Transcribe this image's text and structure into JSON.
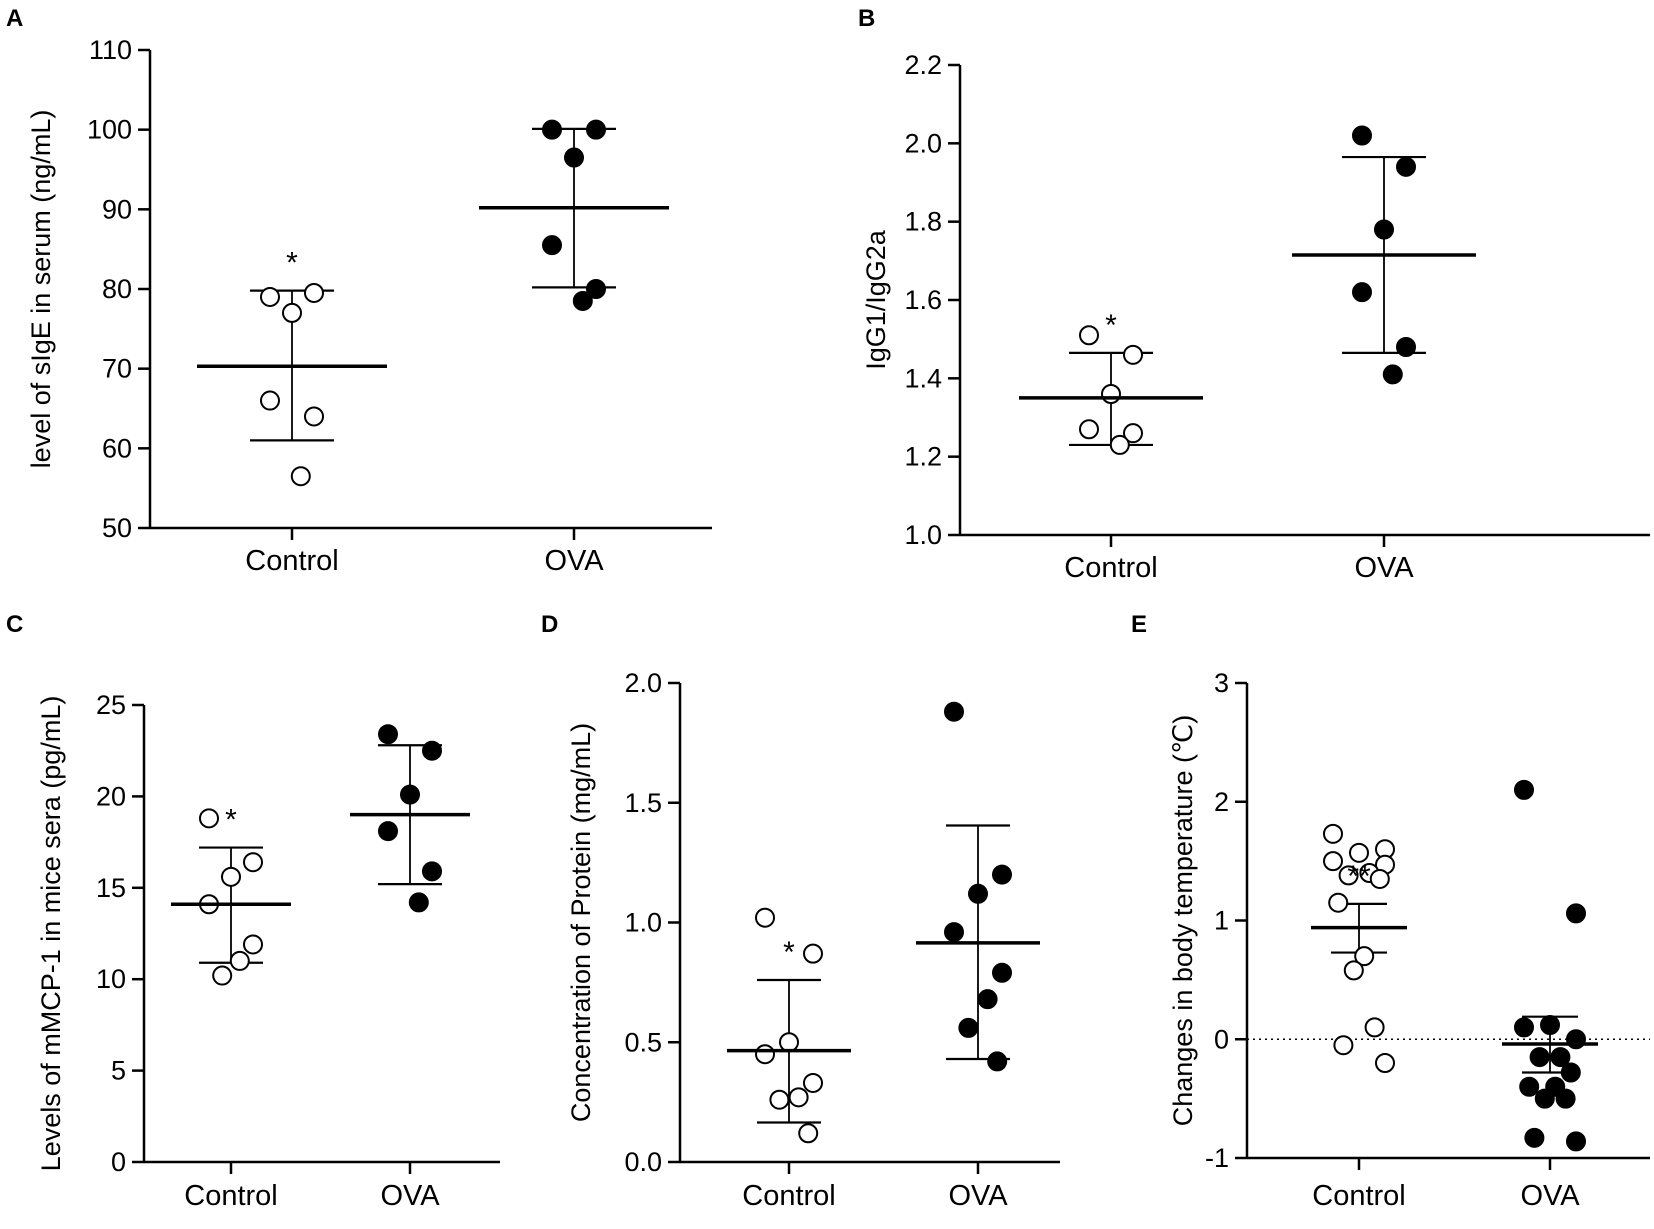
{
  "colors": {
    "ink": "#000000",
    "background": "#ffffff"
  },
  "chart_data": [
    {
      "panel": "A",
      "type": "scatter",
      "categories": [
        "Control",
        "OVA"
      ],
      "ylabel": "level of sIgE in serum (ng/mL)",
      "ylim": [
        50,
        110
      ],
      "yticks": [
        50,
        60,
        70,
        80,
        90,
        100,
        110
      ],
      "tick_decimals": 0,
      "series": [
        {
          "name": "Control",
          "marker": "open",
          "values": [
            79,
            79.5,
            77,
            66,
            64,
            56.5
          ],
          "mean": 70.3,
          "err_low": 61,
          "err_high": 79.8,
          "annotation": "*"
        },
        {
          "name": "OVA",
          "marker": "filled",
          "values": [
            100,
            100,
            96.5,
            85.5,
            80,
            78.5
          ],
          "mean": 90.2,
          "err_low": 80.2,
          "err_high": 100.1,
          "annotation": ""
        }
      ]
    },
    {
      "panel": "B",
      "type": "scatter",
      "categories": [
        "Control",
        "OVA"
      ],
      "ylabel": "IgG1/IgG2a",
      "ylim": [
        1.0,
        2.2
      ],
      "yticks": [
        1.0,
        1.2,
        1.4,
        1.6,
        1.8,
        2.0,
        2.2
      ],
      "tick_decimals": 1,
      "series": [
        {
          "name": "Control",
          "marker": "open",
          "values": [
            1.51,
            1.46,
            1.36,
            1.27,
            1.26,
            1.23
          ],
          "mean": 1.35,
          "err_low": 1.23,
          "err_high": 1.465,
          "annotation": "*"
        },
        {
          "name": "OVA",
          "marker": "filled",
          "values": [
            2.02,
            1.94,
            1.78,
            1.62,
            1.48,
            1.41
          ],
          "mean": 1.715,
          "err_low": 1.465,
          "err_high": 1.965,
          "annotation": ""
        }
      ]
    },
    {
      "panel": "C",
      "type": "scatter",
      "categories": [
        "Control",
        "OVA"
      ],
      "ylabel": "Levels of mMCP-1 in mice sera (pg/mL)",
      "ylim": [
        0,
        25
      ],
      "yticks": [
        0,
        5,
        10,
        15,
        20,
        25
      ],
      "tick_decimals": 0,
      "series": [
        {
          "name": "Control",
          "marker": "open",
          "values": [
            18.8,
            16.4,
            15.6,
            14.1,
            11.9,
            11.0,
            10.2
          ],
          "mean": 14.1,
          "err_low": 10.9,
          "err_high": 17.2,
          "annotation": "*"
        },
        {
          "name": "OVA",
          "marker": "filled",
          "values": [
            23.4,
            22.5,
            20.1,
            18.1,
            15.9,
            14.2
          ],
          "mean": 19.0,
          "err_low": 15.2,
          "err_high": 22.8,
          "annotation": ""
        }
      ]
    },
    {
      "panel": "D",
      "type": "scatter",
      "categories": [
        "Control",
        "OVA"
      ],
      "ylabel": "Concentration  of Protein (mg/mL)",
      "ylim": [
        0.0,
        2.0
      ],
      "yticks": [
        0.0,
        0.5,
        1.0,
        1.5,
        2.0
      ],
      "tick_decimals": 1,
      "series": [
        {
          "name": "Control",
          "marker": "open",
          "values": [
            1.02,
            0.87,
            0.5,
            0.45,
            0.33,
            0.27,
            0.26,
            0.12
          ],
          "mean": 0.465,
          "err_low": 0.165,
          "err_high": 0.76,
          "annotation": "*"
        },
        {
          "name": "OVA",
          "marker": "filled",
          "values": [
            1.88,
            1.2,
            1.12,
            0.96,
            0.79,
            0.68,
            0.56,
            0.42
          ],
          "mean": 0.915,
          "err_low": 0.43,
          "err_high": 1.405,
          "annotation": ""
        }
      ]
    },
    {
      "panel": "E",
      "type": "scatter",
      "categories": [
        "Control",
        "OVA"
      ],
      "ylabel": "Changes in body temperature (℃)",
      "ylim": [
        -1,
        3
      ],
      "yticks": [
        -1,
        0,
        1,
        2,
        3
      ],
      "tick_decimals": 0,
      "reference_line": 0,
      "series": [
        {
          "name": "Control",
          "marker": "open",
          "values": [
            1.73,
            1.6,
            1.57,
            1.5,
            1.47,
            1.4,
            1.38,
            1.35,
            1.15,
            0.7,
            0.58,
            0.1,
            -0.05,
            -0.2
          ],
          "mean": 0.94,
          "err_low": 0.73,
          "err_high": 1.14,
          "annotation": "**"
        },
        {
          "name": "OVA",
          "marker": "filled",
          "values": [
            2.1,
            1.06,
            0.12,
            0.1,
            0.0,
            -0.15,
            -0.15,
            -0.28,
            -0.4,
            -0.4,
            -0.5,
            -0.5,
            -0.83,
            -0.86
          ],
          "mean": -0.04,
          "err_low": -0.28,
          "err_high": 0.19,
          "annotation": ""
        }
      ]
    }
  ]
}
